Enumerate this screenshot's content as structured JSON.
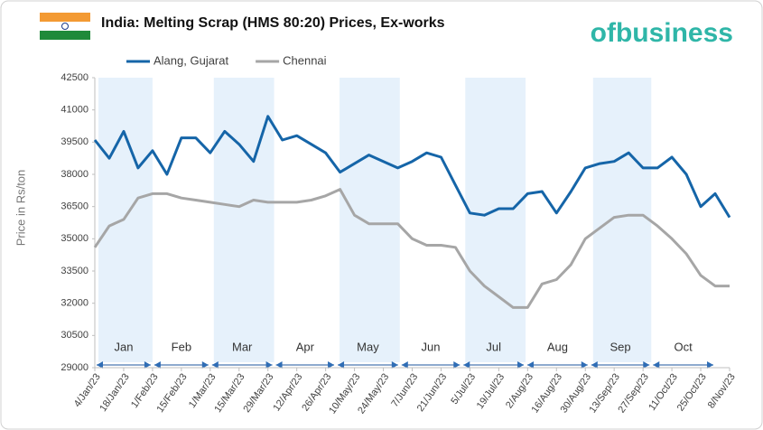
{
  "chart_data": {
    "type": "line",
    "title": "India: Melting Scrap (HMS 80:20) Prices, Ex-works",
    "logo": "ofbusiness",
    "y_label": "Price in Rs/ton",
    "x": [
      "4/Jan/23",
      "11/Jan/23",
      "18/Jan/23",
      "25/Jan/23",
      "1/Feb/23",
      "8/Feb/23",
      "15/Feb/23",
      "22/Feb/23",
      "1/Mar/23",
      "8/Mar/23",
      "15/Mar/23",
      "22/Mar/23",
      "29/Mar/23",
      "5/Apr/23",
      "12/Apr/23",
      "19/Apr/23",
      "26/Apr/23",
      "3/May/23",
      "10/May/23",
      "17/May/23",
      "24/May/23",
      "31/May/23",
      "7/Jun/23",
      "14/Jun/23",
      "21/Jun/23",
      "28/Jun/23",
      "5/Jul/23",
      "12/Jul/23",
      "19/Jul/23",
      "26/Jul/23",
      "2/Aug/23",
      "9/Aug/23",
      "16/Aug/23",
      "23/Aug/23",
      "30/Aug/23",
      "6/Sep/23",
      "13/Sep/23",
      "20/Sep/23",
      "27/Sep/23",
      "4/Oct/23",
      "11/Oct/23",
      "18/Oct/23",
      "25/Oct/23",
      "1/Nov/23",
      "8/Nov/23"
    ],
    "series": [
      {
        "name": "Alang, Gujarat",
        "color": "#1565a8",
        "values": [
          39600,
          38750,
          40000,
          38300,
          39100,
          38000,
          39700,
          39700,
          39000,
          40000,
          39400,
          38600,
          40700,
          39600,
          39800,
          39400,
          39000,
          38100,
          38500,
          38900,
          38600,
          38300,
          38600,
          39000,
          38800,
          37500,
          36200,
          36100,
          36400,
          36400,
          37100,
          37200,
          36200,
          37200,
          38300,
          38500,
          38600,
          39000,
          38300,
          38300,
          38800,
          38000,
          36500,
          37100,
          36000
        ]
      },
      {
        "name": "Chennai",
        "color": "#a6a6a6",
        "values": [
          34600,
          35600,
          35900,
          36900,
          37100,
          37100,
          36900,
          36800,
          36700,
          36600,
          36500,
          36800,
          36700,
          36700,
          36700,
          36800,
          37000,
          37300,
          36100,
          35700,
          35700,
          35700,
          35000,
          34700,
          34700,
          34600,
          33500,
          32800,
          32300,
          31800,
          31800,
          32900,
          33100,
          33800,
          35000,
          35500,
          36000,
          36100,
          36100,
          35600,
          35000,
          34300,
          33300,
          32800,
          32800
        ]
      }
    ],
    "xlim": [
      "4/Jan/23",
      "8/Nov/23"
    ],
    "xticks": [
      "4/Jan/23",
      "18/Jan/23",
      "1/Feb/23",
      "15/Feb/23",
      "1/Mar/23",
      "15/Mar/23",
      "29/Mar/23",
      "12/Apr/23",
      "26/Apr/23",
      "10/May/23",
      "24/May/23",
      "7/Jun/23",
      "21/Jun/23",
      "5/Jul/23",
      "19/Jul/23",
      "2/Aug/23",
      "16/Aug/23",
      "30/Aug/23",
      "13/Sep/23",
      "27/Sep/23",
      "11/Oct/23",
      "25/Oct/23",
      "8/Nov/23"
    ],
    "ylim": [
      29000,
      42500
    ],
    "yticks": [
      29000,
      30500,
      32000,
      33500,
      35000,
      36500,
      38000,
      39500,
      41000,
      42500
    ],
    "grid": false,
    "legend": "top",
    "month_bands": [
      {
        "label": "Jan",
        "start": "4/Jan/23",
        "end": "1/Feb/23",
        "shaded": true
      },
      {
        "label": "Feb",
        "start": "1/Feb/23",
        "end": "1/Mar/23",
        "shaded": false
      },
      {
        "label": "Mar",
        "start": "1/Mar/23",
        "end": "1/Apr/23",
        "shaded": true
      },
      {
        "label": "Apr",
        "start": "1/Apr/23",
        "end": "1/May/23",
        "shaded": false
      },
      {
        "label": "May",
        "start": "1/May/23",
        "end": "1/Jun/23",
        "shaded": true
      },
      {
        "label": "Jun",
        "start": "1/Jun/23",
        "end": "1/Jul/23",
        "shaded": false
      },
      {
        "label": "Jul",
        "start": "1/Jul/23",
        "end": "1/Aug/23",
        "shaded": true
      },
      {
        "label": "Aug",
        "start": "1/Aug/23",
        "end": "1/Sep/23",
        "shaded": false
      },
      {
        "label": "Sep",
        "start": "1/Sep/23",
        "end": "1/Oct/23",
        "shaded": true
      },
      {
        "label": "Oct",
        "start": "1/Oct/23",
        "end": "1/Nov/23",
        "shaded": false
      }
    ]
  }
}
